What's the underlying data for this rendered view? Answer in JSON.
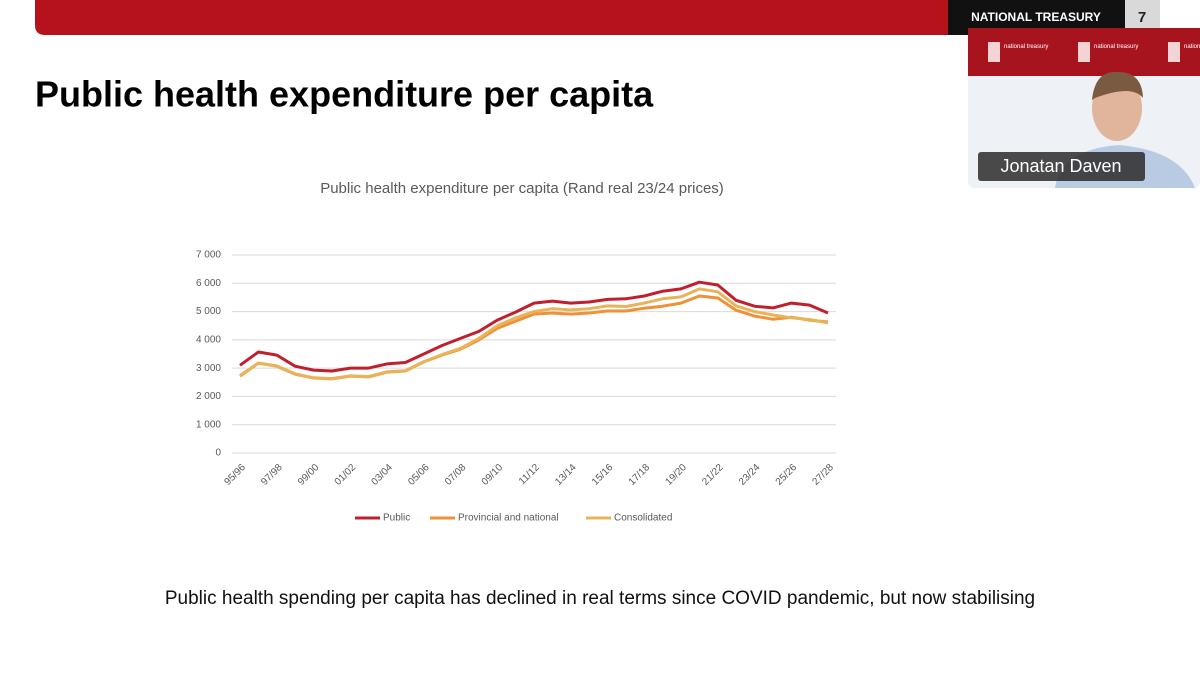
{
  "banner": {
    "org": "NATIONAL TREASURY",
    "page": "7"
  },
  "title": "Public health expenditure per capita",
  "caption": "Public health spending per capita has declined in real terms since COVID pandemic, but now stabilising",
  "video": {
    "participant": "Jonatan Daven",
    "logo_text": "national treasury"
  },
  "chart_data": {
    "type": "line",
    "title": "Public health expenditure per capita (Rand real 23/24 prices)",
    "categories": [
      "95/96",
      null,
      "97/98",
      null,
      "99/00",
      null,
      "01/02",
      null,
      "03/04",
      null,
      "05/06",
      null,
      "07/08",
      null,
      "09/10",
      null,
      "11/12",
      null,
      "13/14",
      null,
      "15/16",
      null,
      "17/18",
      null,
      "19/20",
      null,
      "21/22",
      null,
      "23/24",
      null,
      "25/26",
      null,
      "27/28"
    ],
    "series": [
      {
        "name": "Public",
        "color": "#c0202e",
        "values": [
          3100,
          3570,
          3460,
          3070,
          2930,
          2900,
          3000,
          3000,
          3150,
          3200,
          3500,
          3800,
          4050,
          4300,
          4700,
          4980,
          5300,
          5370,
          5300,
          5340,
          5430,
          5450,
          5550,
          5720,
          5800,
          6040,
          5940,
          5400,
          5190,
          5130,
          5300,
          5230,
          4950
        ]
      },
      {
        "name": "Provincial and national",
        "color": "#f0913a",
        "values": [
          2720,
          3180,
          3070,
          2790,
          2650,
          2620,
          2720,
          2690,
          2860,
          2900,
          3220,
          3460,
          3670,
          4000,
          4410,
          4660,
          4910,
          4950,
          4910,
          4950,
          5020,
          5020,
          5120,
          5190,
          5300,
          5550,
          5480,
          5050,
          4840,
          4730,
          4800,
          4700,
          4630
        ]
      },
      {
        "name": "Consolidated",
        "color": "#e8b45a",
        "values": [
          2740,
          3180,
          3080,
          2800,
          2660,
          2630,
          2730,
          2700,
          2870,
          2910,
          3230,
          3480,
          3700,
          4050,
          4500,
          4780,
          5000,
          5100,
          5060,
          5100,
          5200,
          5180,
          5300,
          5450,
          5520,
          5800,
          5700,
          5200,
          5000,
          4880,
          4780,
          4720,
          4600
        ]
      }
    ],
    "ylim": [
      0,
      7000
    ],
    "yticks": [
      0,
      {
        "value": 1000,
        "label": "1 000"
      },
      {
        "value": 2000,
        "label": "2 000"
      },
      {
        "value": 3000,
        "label": "3 000"
      },
      {
        "value": 4000,
        "label": "4 000"
      },
      {
        "value": 5000,
        "label": "5 000"
      },
      {
        "value": 6000,
        "label": "6 000"
      },
      {
        "value": 7000,
        "label": "7 000"
      }
    ],
    "grid": true,
    "legend": "bottom"
  }
}
